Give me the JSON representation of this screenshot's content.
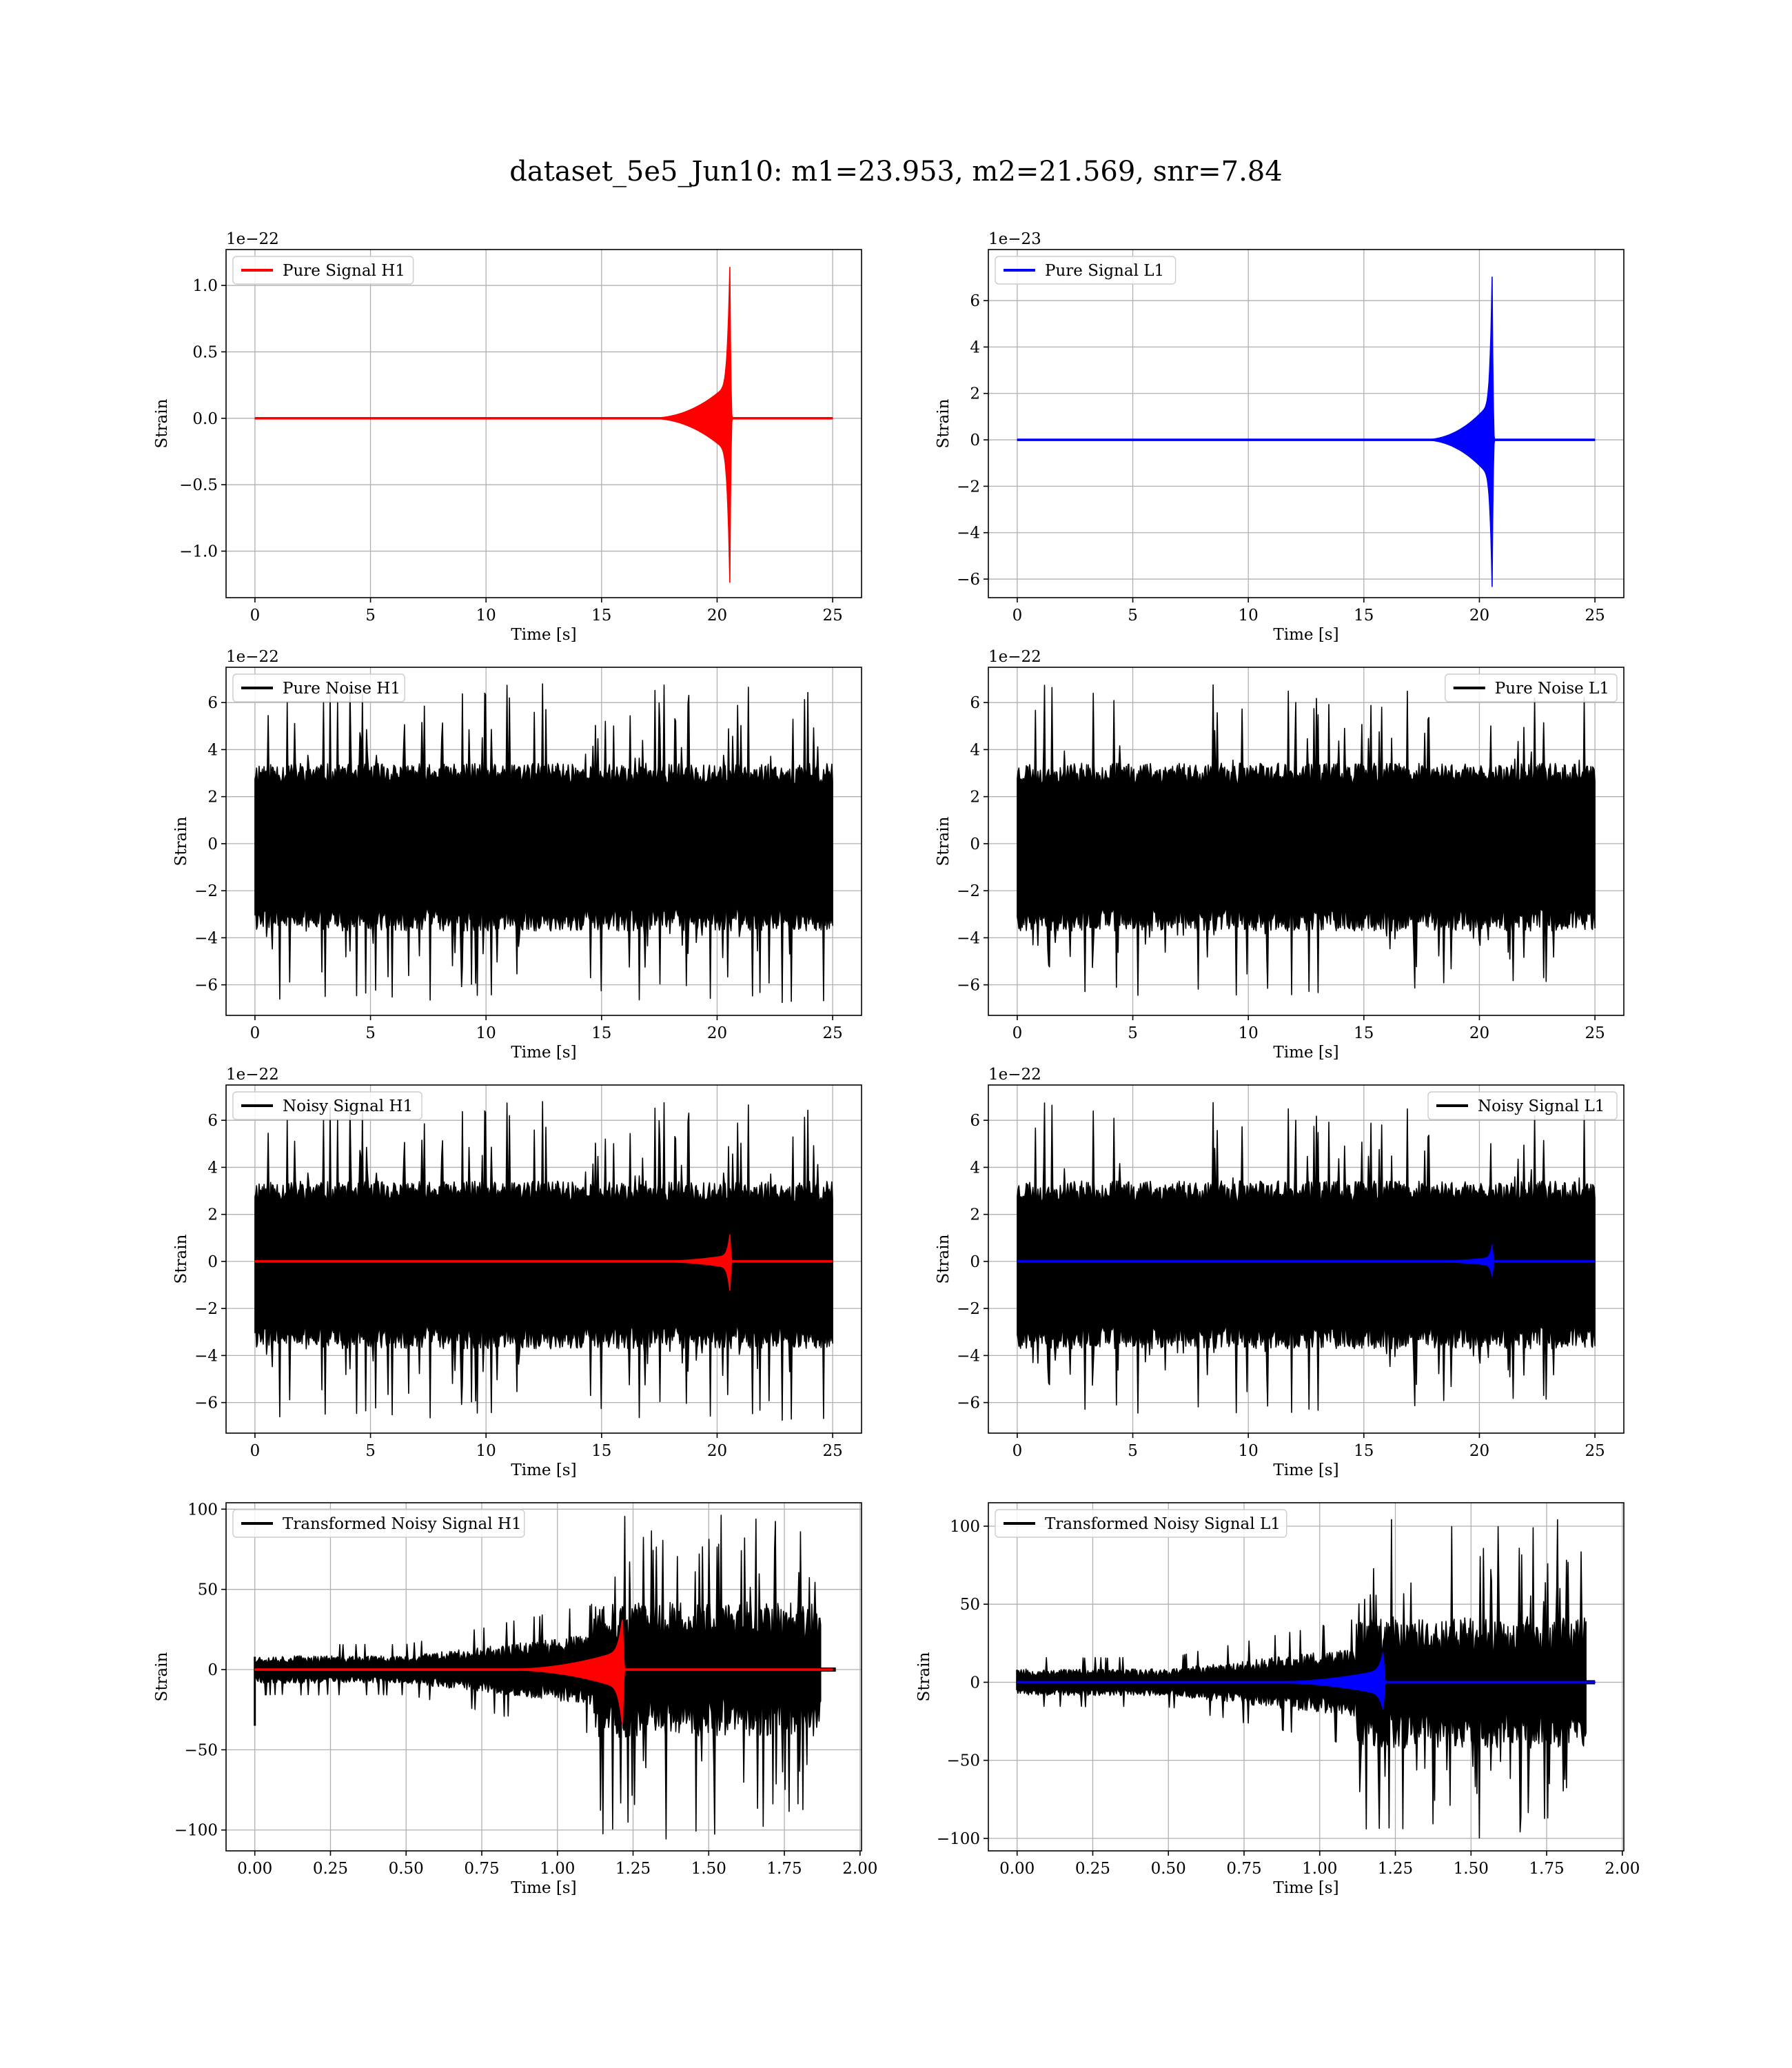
{
  "figure": {
    "title": "dataset_5e5_Jun10: m1=23.953, m2=21.569, snr=7.84"
  },
  "colors": {
    "h1_signal": "#ff0000",
    "l1_signal": "#0000ff",
    "noise": "#000000"
  },
  "chart_data": [
    {
      "id": "pure-signal-h1",
      "type": "line",
      "xlabel": "Time [s]",
      "ylabel": "Strain",
      "offset_text": "1e−22",
      "xlim": [
        -1.25,
        26.25
      ],
      "ylim": [
        -1.35,
        1.27
      ],
      "xticks": [
        0,
        5,
        10,
        15,
        20,
        25
      ],
      "xtick_labels": [
        "0",
        "5",
        "10",
        "15",
        "20",
        "25"
      ],
      "yticks": [
        -1.0,
        -0.5,
        0.0,
        0.5,
        1.0
      ],
      "ytick_labels": [
        "−1.0",
        "−0.5",
        "0.0",
        "0.5",
        "1.0"
      ],
      "legend": {
        "loc": "upper left",
        "entries": [
          {
            "name": "Pure Signal H1",
            "color": "#ff0000"
          }
        ]
      },
      "series": [
        {
          "name": "Pure Signal H1",
          "color": "#ff0000",
          "kind": "chirp",
          "x_range": [
            0,
            25
          ],
          "t_start": 17.0,
          "t_merge": 20.55,
          "peak_pos": 1.15,
          "peak_neg": -1.25,
          "plateau": 0.27,
          "ringdown": 0.1
        }
      ]
    },
    {
      "id": "pure-signal-l1",
      "type": "line",
      "xlabel": "Time [s]",
      "ylabel": "Strain",
      "offset_text": "1e−23",
      "xlim": [
        -1.25,
        26.25
      ],
      "ylim": [
        -6.8,
        8.2
      ],
      "xticks": [
        0,
        5,
        10,
        15,
        20,
        25
      ],
      "xtick_labels": [
        "0",
        "5",
        "10",
        "15",
        "20",
        "25"
      ],
      "yticks": [
        -6,
        -4,
        -2,
        0,
        2,
        4,
        6
      ],
      "ytick_labels": [
        "−6",
        "−4",
        "−2",
        "0",
        "2",
        "4",
        "6"
      ],
      "legend": {
        "loc": "upper left",
        "entries": [
          {
            "name": "Pure Signal L1",
            "color": "#0000ff"
          }
        ]
      },
      "series": [
        {
          "name": "Pure Signal L1",
          "color": "#0000ff",
          "kind": "chirp",
          "x_range": [
            0,
            25
          ],
          "t_start": 17.5,
          "t_merge": 20.55,
          "peak_pos": 7.1,
          "peak_neg": -6.4,
          "plateau": 1.7,
          "ringdown": 0.1
        }
      ]
    },
    {
      "id": "pure-noise-h1",
      "type": "line",
      "xlabel": "Time [s]",
      "ylabel": "Strain",
      "offset_text": "1e−22",
      "xlim": [
        -1.25,
        26.25
      ],
      "ylim": [
        -7.3,
        7.5
      ],
      "xticks": [
        0,
        5,
        10,
        15,
        20,
        25
      ],
      "xtick_labels": [
        "0",
        "5",
        "10",
        "15",
        "20",
        "25"
      ],
      "yticks": [
        -6,
        -4,
        -2,
        0,
        2,
        4,
        6
      ],
      "ytick_labels": [
        "−6",
        "−4",
        "−2",
        "0",
        "2",
        "4",
        "6"
      ],
      "legend": {
        "loc": "upper left",
        "entries": [
          {
            "name": "Pure Noise H1",
            "color": "#000000"
          }
        ]
      },
      "series": [
        {
          "name": "Pure Noise H1",
          "color": "#000000",
          "kind": "noise",
          "x_range": [
            0,
            25
          ],
          "band_pos": 3.5,
          "band_neg": -3.8,
          "spike_max": 6.8,
          "spike_min": -6.8,
          "seed": 11
        }
      ]
    },
    {
      "id": "pure-noise-l1",
      "type": "line",
      "xlabel": "Time [s]",
      "ylabel": "Strain",
      "offset_text": "1e−22",
      "xlim": [
        -1.25,
        26.25
      ],
      "ylim": [
        -7.3,
        7.5
      ],
      "xticks": [
        0,
        5,
        10,
        15,
        20,
        25
      ],
      "xtick_labels": [
        "0",
        "5",
        "10",
        "15",
        "20",
        "25"
      ],
      "yticks": [
        -6,
        -4,
        -2,
        0,
        2,
        4,
        6
      ],
      "ytick_labels": [
        "−6",
        "−4",
        "−2",
        "0",
        "2",
        "4",
        "6"
      ],
      "legend": {
        "loc": "upper right",
        "entries": [
          {
            "name": "Pure Noise L1",
            "color": "#000000"
          }
        ]
      },
      "series": [
        {
          "name": "Pure Noise L1",
          "color": "#000000",
          "kind": "noise",
          "x_range": [
            0,
            25
          ],
          "band_pos": 3.5,
          "band_neg": -3.8,
          "spike_max": 6.8,
          "spike_min": -6.5,
          "seed": 23
        }
      ]
    },
    {
      "id": "noisy-signal-h1",
      "type": "line",
      "xlabel": "Time [s]",
      "ylabel": "Strain",
      "offset_text": "1e−22",
      "xlim": [
        -1.25,
        26.25
      ],
      "ylim": [
        -7.3,
        7.5
      ],
      "xticks": [
        0,
        5,
        10,
        15,
        20,
        25
      ],
      "xtick_labels": [
        "0",
        "5",
        "10",
        "15",
        "20",
        "25"
      ],
      "yticks": [
        -6,
        -4,
        -2,
        0,
        2,
        4,
        6
      ],
      "ytick_labels": [
        "−6",
        "−4",
        "−2",
        "0",
        "2",
        "4",
        "6"
      ],
      "legend": {
        "loc": "upper left",
        "entries": [
          {
            "name": "Noisy Signal H1",
            "color": "#000000"
          }
        ]
      },
      "series": [
        {
          "name": "Noisy Signal H1",
          "color": "#000000",
          "kind": "noise",
          "x_range": [
            0,
            25
          ],
          "band_pos": 3.5,
          "band_neg": -3.8,
          "spike_max": 6.8,
          "spike_min": -6.8,
          "seed": 11
        },
        {
          "name": "",
          "color": "#ff0000",
          "kind": "chirp",
          "x_range": [
            0,
            25
          ],
          "t_start": 17.0,
          "t_merge": 20.55,
          "peak_pos": 1.15,
          "peak_neg": -1.25,
          "plateau": 0.27,
          "ringdown": 0.1
        }
      ]
    },
    {
      "id": "noisy-signal-l1",
      "type": "line",
      "xlabel": "Time [s]",
      "ylabel": "Strain",
      "offset_text": "1e−22",
      "xlim": [
        -1.25,
        26.25
      ],
      "ylim": [
        -7.3,
        7.5
      ],
      "xticks": [
        0,
        5,
        10,
        15,
        20,
        25
      ],
      "xtick_labels": [
        "0",
        "5",
        "10",
        "15",
        "20",
        "25"
      ],
      "yticks": [
        -6,
        -4,
        -2,
        0,
        2,
        4,
        6
      ],
      "ytick_labels": [
        "−6",
        "−4",
        "−2",
        "0",
        "2",
        "4",
        "6"
      ],
      "legend": {
        "loc": "upper right",
        "entries": [
          {
            "name": "Noisy Signal L1",
            "color": "#000000"
          }
        ]
      },
      "series": [
        {
          "name": "Noisy Signal L1",
          "color": "#000000",
          "kind": "noise",
          "x_range": [
            0,
            25
          ],
          "band_pos": 3.5,
          "band_neg": -3.8,
          "spike_max": 6.8,
          "spike_min": -6.5,
          "seed": 23
        },
        {
          "name": "",
          "color": "#0000ff",
          "kind": "chirp",
          "x_range": [
            0,
            25
          ],
          "t_start": 17.5,
          "t_merge": 20.55,
          "peak_pos": 0.71,
          "peak_neg": -0.64,
          "plateau": 0.17,
          "ringdown": 0.1
        }
      ]
    },
    {
      "id": "transformed-noisy-signal-h1",
      "type": "line",
      "xlabel": "Time [s]",
      "ylabel": "Strain",
      "offset_text": "",
      "xlim": [
        -0.095,
        2.005
      ],
      "ylim": [
        -113,
        104
      ],
      "xticks": [
        0,
        0.25,
        0.5,
        0.75,
        1.0,
        1.25,
        1.5,
        1.75,
        2.0
      ],
      "xtick_labels": [
        "0.00",
        "0.25",
        "0.50",
        "0.75",
        "1.00",
        "1.25",
        "1.50",
        "1.75",
        "2.00"
      ],
      "yticks": [
        -100,
        -50,
        0,
        50,
        100
      ],
      "ytick_labels": [
        "−100",
        "−50",
        "0",
        "50",
        "100"
      ],
      "legend": {
        "loc": "upper left",
        "entries": [
          {
            "name": "Transformed Noisy Signal H1",
            "color": "#000000"
          }
        ]
      },
      "series": [
        {
          "name": "Transformed Noisy Signal H1",
          "color": "#000000",
          "kind": "transformed_noise",
          "x_range": [
            0,
            1.87
          ],
          "pre_level": 8,
          "pre_end": 1.12,
          "post_band": 50,
          "spike_max": 97,
          "spike_min": -108,
          "initial_dip": -35,
          "tail_to": 1.92,
          "seed": 37
        },
        {
          "name": "",
          "color": "#ff0000",
          "kind": "chirp",
          "x_range": [
            0,
            1.91
          ],
          "t_start": 0.8,
          "t_merge": 1.215,
          "peak_pos": 33,
          "peak_neg": -36,
          "plateau": 12,
          "ringdown": 0.008
        }
      ]
    },
    {
      "id": "transformed-noisy-signal-l1",
      "type": "line",
      "xlabel": "Time [s]",
      "ylabel": "Strain",
      "offset_text": "",
      "xlim": [
        -0.095,
        2.005
      ],
      "ylim": [
        -108,
        115
      ],
      "xticks": [
        0,
        0.25,
        0.5,
        0.75,
        1.0,
        1.25,
        1.5,
        1.75,
        2.0
      ],
      "xtick_labels": [
        "0.00",
        "0.25",
        "0.50",
        "0.75",
        "1.00",
        "1.25",
        "1.50",
        "1.75",
        "2.00"
      ],
      "yticks": [
        -100,
        -50,
        0,
        50,
        100
      ],
      "ytick_labels": [
        "−100",
        "−50",
        "0",
        "50",
        "100"
      ],
      "legend": {
        "loc": "upper left",
        "entries": [
          {
            "name": "Transformed Noisy Signal L1",
            "color": "#000000"
          }
        ]
      },
      "series": [
        {
          "name": "Transformed Noisy Signal L1",
          "color": "#000000",
          "kind": "transformed_noise",
          "x_range": [
            0,
            1.88
          ],
          "pre_level": 8,
          "pre_end": 1.12,
          "post_band": 50,
          "spike_max": 106,
          "spike_min": -101,
          "initial_dip": -5,
          "tail_to": 1.91,
          "seed": 53
        },
        {
          "name": "",
          "color": "#0000ff",
          "kind": "chirp",
          "x_range": [
            0,
            1.91
          ],
          "t_start": 0.8,
          "t_merge": 1.21,
          "peak_pos": 20,
          "peak_neg": -18,
          "plateau": 8,
          "ringdown": 0.008
        }
      ]
    }
  ]
}
